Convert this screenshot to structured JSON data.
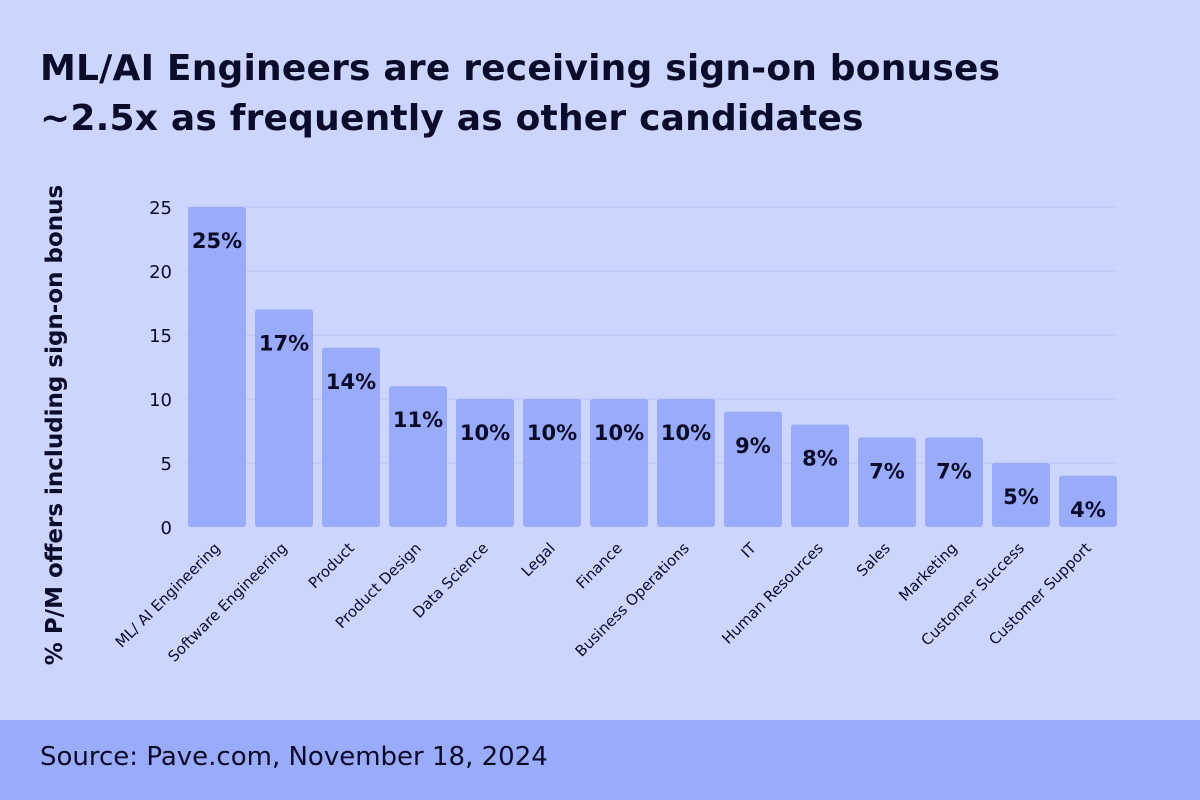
{
  "title_lines": [
    "ML/AI Engineers are receiving sign-on bonuses",
    "~2.5x as frequently as other candidates"
  ],
  "source": "Source: Pave.com, November 18, 2024",
  "colors": {
    "background": "#ccd5fe",
    "bar": "#9aabfa",
    "text": "#0b0b2a",
    "grid": "#b8c3f5"
  },
  "chart_data": {
    "type": "bar",
    "title": "ML/AI Engineers are receiving sign-on bonuses ~2.5x as frequently as other candidates",
    "xlabel": "",
    "ylabel": "% P/M offers including sign-on bonus",
    "ylim": [
      0,
      25
    ],
    "yticks": [
      0,
      5,
      10,
      15,
      20,
      25
    ],
    "grid": true,
    "categories": [
      "ML/ AI Engineering",
      "Software Engineering",
      "Product",
      "Product Design",
      "Data Science",
      "Legal",
      "Finance",
      "Business Operations",
      "IT",
      "Human Resources",
      "Sales",
      "Marketing",
      "Customer Success",
      "Customer Support"
    ],
    "values": [
      25,
      17,
      14,
      11,
      10,
      10,
      10,
      10,
      9,
      8,
      7,
      7,
      5,
      4
    ],
    "data_labels": [
      "25%",
      "17%",
      "14%",
      "11%",
      "10%",
      "10%",
      "10%",
      "10%",
      "9%",
      "8%",
      "7%",
      "7%",
      "5%",
      "4%"
    ]
  }
}
